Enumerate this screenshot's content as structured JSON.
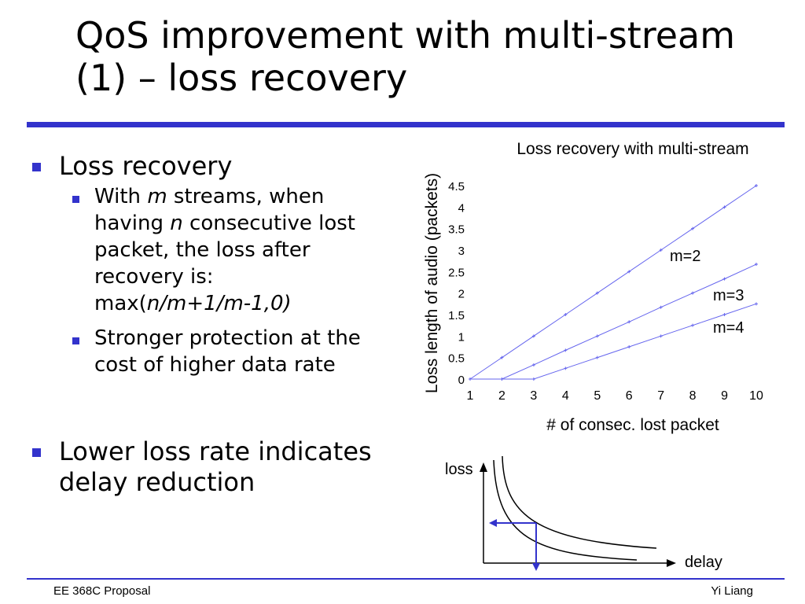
{
  "slide": {
    "title": "QoS improvement with multi-stream (1) – loss recovery",
    "footer_left": "EE 368C Proposal",
    "footer_right": "Yi Liang",
    "accent_color": "#3333cc"
  },
  "bullets": {
    "b1": "Loss recovery",
    "b1_sub1": {
      "line1_a": "With ",
      "line1_b": "m",
      "line1_c": " streams, when",
      "line2_a": "having ",
      "line2_b": "n",
      "line2_c": " consecutive lost",
      "line3": "packet, the loss after",
      "line4": "recovery is:",
      "line5_a": "max(",
      "line5_b": "n/m+1/m-1,0)"
    },
    "b1_sub2_line1": "Stronger protection at the",
    "b1_sub2_line2": "cost of higher data rate",
    "b2_line1": "Lower loss rate indicates",
    "b2_line2": "delay reduction"
  },
  "chart_data": [
    {
      "type": "line",
      "title": "Loss recovery with multi-stream",
      "xlabel": "# of consec. lost packet",
      "ylabel": "Loss length of audio (packets)",
      "xlim": [
        1,
        10
      ],
      "ylim": [
        0,
        4.5
      ],
      "x_ticks": [
        1,
        2,
        3,
        4,
        5,
        6,
        7,
        8,
        9,
        10
      ],
      "y_ticks": [
        0,
        0.5,
        1,
        1.5,
        2,
        2.5,
        3,
        3.5,
        4,
        4.5
      ],
      "grid": false,
      "line_color": "#6666ee",
      "x": [
        1,
        2,
        3,
        4,
        5,
        6,
        7,
        8,
        9,
        10
      ],
      "series": [
        {
          "name": "m=2",
          "values": [
            0,
            0.5,
            1,
            1.5,
            2,
            2.5,
            3,
            3.5,
            4,
            4.5
          ]
        },
        {
          "name": "m=3",
          "values": [
            0,
            0,
            0.33,
            0.67,
            1,
            1.33,
            1.67,
            2,
            2.33,
            2.67
          ]
        },
        {
          "name": "m=4",
          "values": [
            0,
            0,
            0,
            0.25,
            0.5,
            0.75,
            1,
            1.25,
            1.5,
            1.75
          ]
        }
      ]
    },
    {
      "type": "line",
      "title": "",
      "xlabel": "delay",
      "ylabel": "loss",
      "axis_color": "#000000",
      "arrow_color": "#3333cc"
    }
  ]
}
